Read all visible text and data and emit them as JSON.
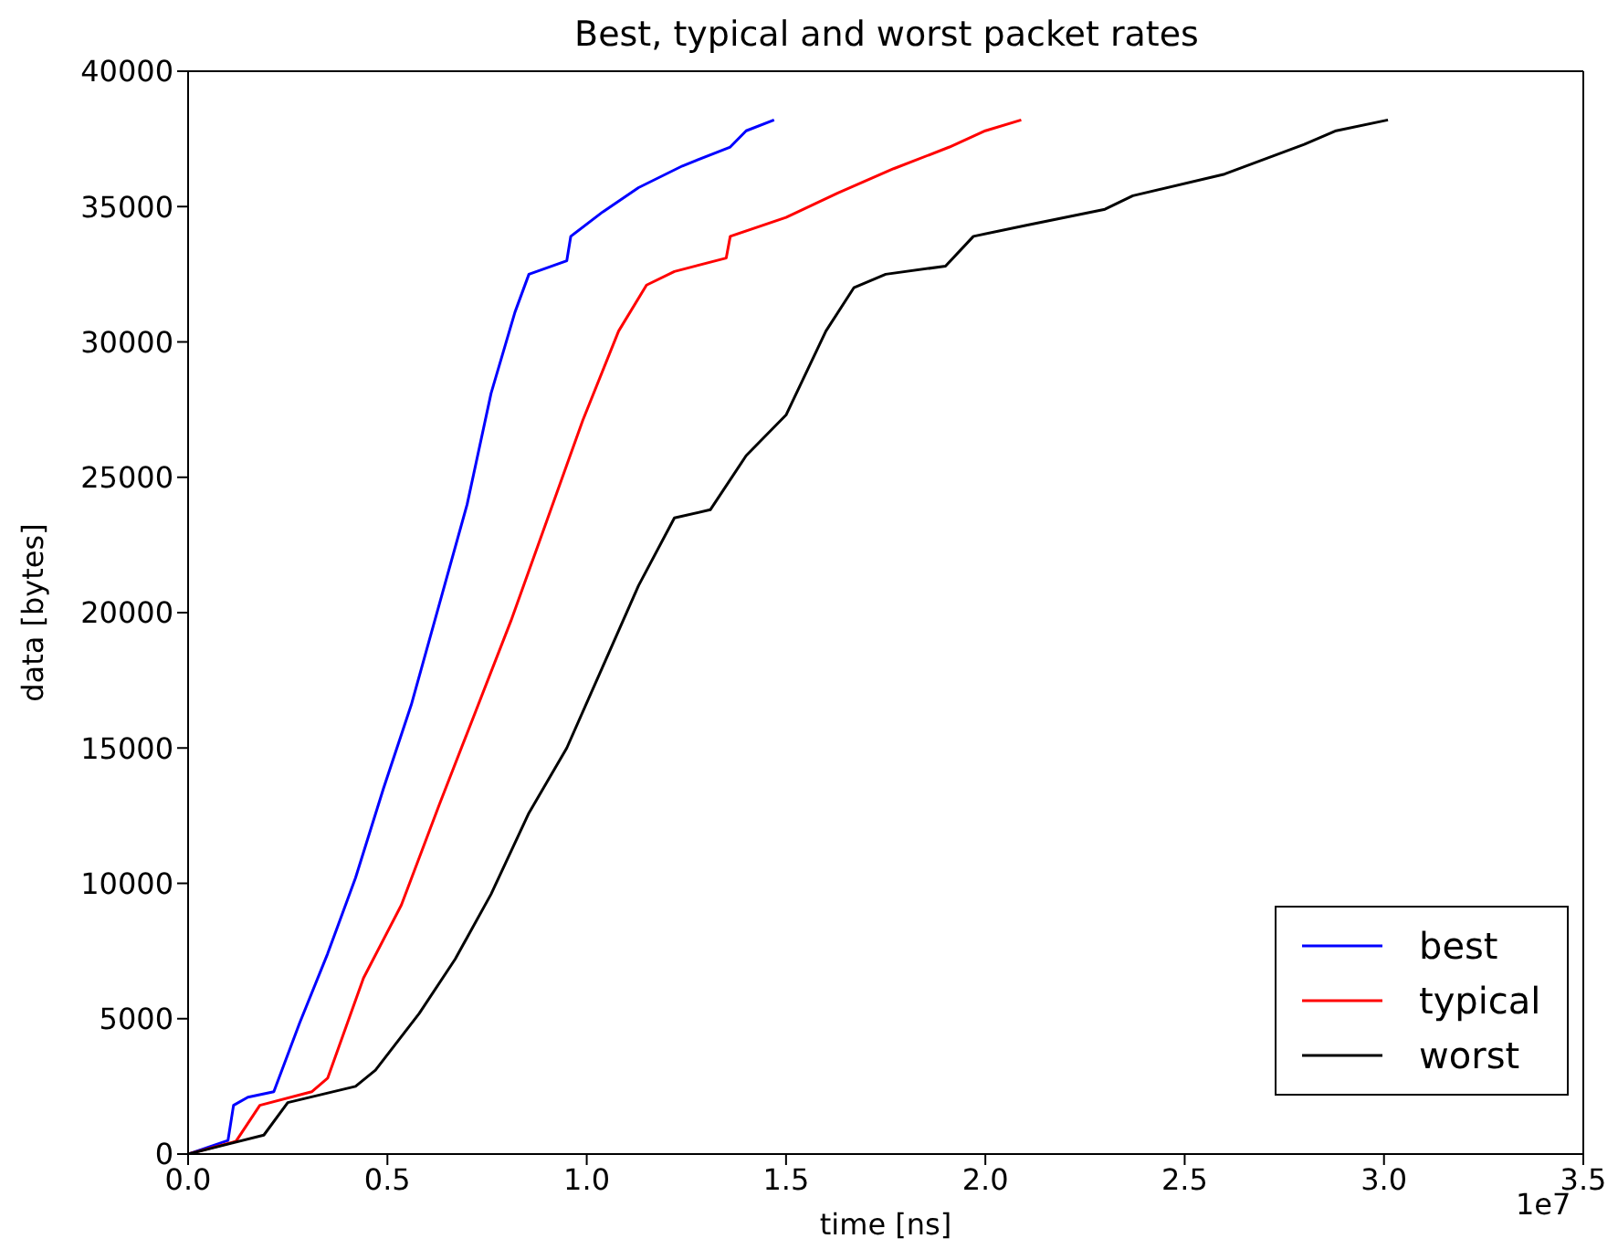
{
  "chart_data": {
    "type": "line",
    "title": "Best, typical and worst packet rates",
    "xlabel": "time [ns]",
    "ylabel": "data [bytes]",
    "annotations": [
      "1e7"
    ],
    "xlim": [
      0,
      3.5
    ],
    "xticks": [
      {
        "value": 0,
        "label": "0.0"
      },
      0.5,
      {
        "value": 1,
        "label": "1.0"
      },
      1.5,
      {
        "value": 2,
        "label": "2.0"
      },
      2.5,
      {
        "value": 3,
        "label": "3.0"
      },
      3.5
    ],
    "ylim": [
      0,
      40000
    ],
    "yticks": [
      0,
      5000,
      10000,
      15000,
      20000,
      25000,
      30000,
      35000,
      40000
    ],
    "grid": false,
    "legend": "bottom right",
    "marker": "none",
    "line_style": "solid",
    "series": [
      {
        "name": "best",
        "color": "#0000ff",
        "x": [
          0,
          0.1,
          0.114,
          0.15,
          0.215,
          0.28,
          0.35,
          0.42,
          0.49,
          0.56,
          0.63,
          0.7,
          0.76,
          0.82,
          0.855,
          0.95,
          0.96,
          1.04,
          1.13,
          1.24,
          1.36,
          1.4,
          1.47
        ],
        "values": [
          0,
          500,
          1800,
          2100,
          2300,
          4850,
          7400,
          10200,
          13500,
          16600,
          20300,
          24000,
          28100,
          31100,
          32500,
          33000,
          33900,
          34800,
          35700,
          36500,
          37200,
          37800,
          38200
        ]
      },
      {
        "name": "typical",
        "color": "#ff0000",
        "x": [
          0,
          0.12,
          0.18,
          0.31,
          0.35,
          0.44,
          0.535,
          0.63,
          0.72,
          0.81,
          0.9,
          0.99,
          1.08,
          1.15,
          1.22,
          1.35,
          1.36,
          1.5,
          1.63,
          1.77,
          1.91,
          2,
          2.09
        ],
        "values": [
          0,
          470,
          1800,
          2300,
          2800,
          6500,
          9200,
          12900,
          16300,
          19700,
          23400,
          27100,
          30400,
          32100,
          32600,
          33100,
          33900,
          34600,
          35500,
          36400,
          37200,
          37800,
          38200
        ]
      },
      {
        "name": "worst",
        "color": "#000000",
        "x": [
          0,
          0.19,
          0.25,
          0.42,
          0.47,
          0.58,
          0.67,
          0.76,
          0.855,
          0.95,
          1.04,
          1.13,
          1.22,
          1.31,
          1.4,
          1.5,
          1.6,
          1.67,
          1.75,
          1.9,
          1.97,
          2.1,
          2.3,
          2.37,
          2.6,
          2.8,
          2.88,
          3.01
        ],
        "values": [
          0,
          700,
          1900,
          2500,
          3100,
          5200,
          7200,
          9600,
          12600,
          15000,
          18000,
          21000,
          23500,
          23800,
          25800,
          27300,
          30400,
          32000,
          32500,
          32800,
          33900,
          34300,
          34900,
          35400,
          36200,
          37300,
          37800,
          38200
        ]
      }
    ]
  }
}
